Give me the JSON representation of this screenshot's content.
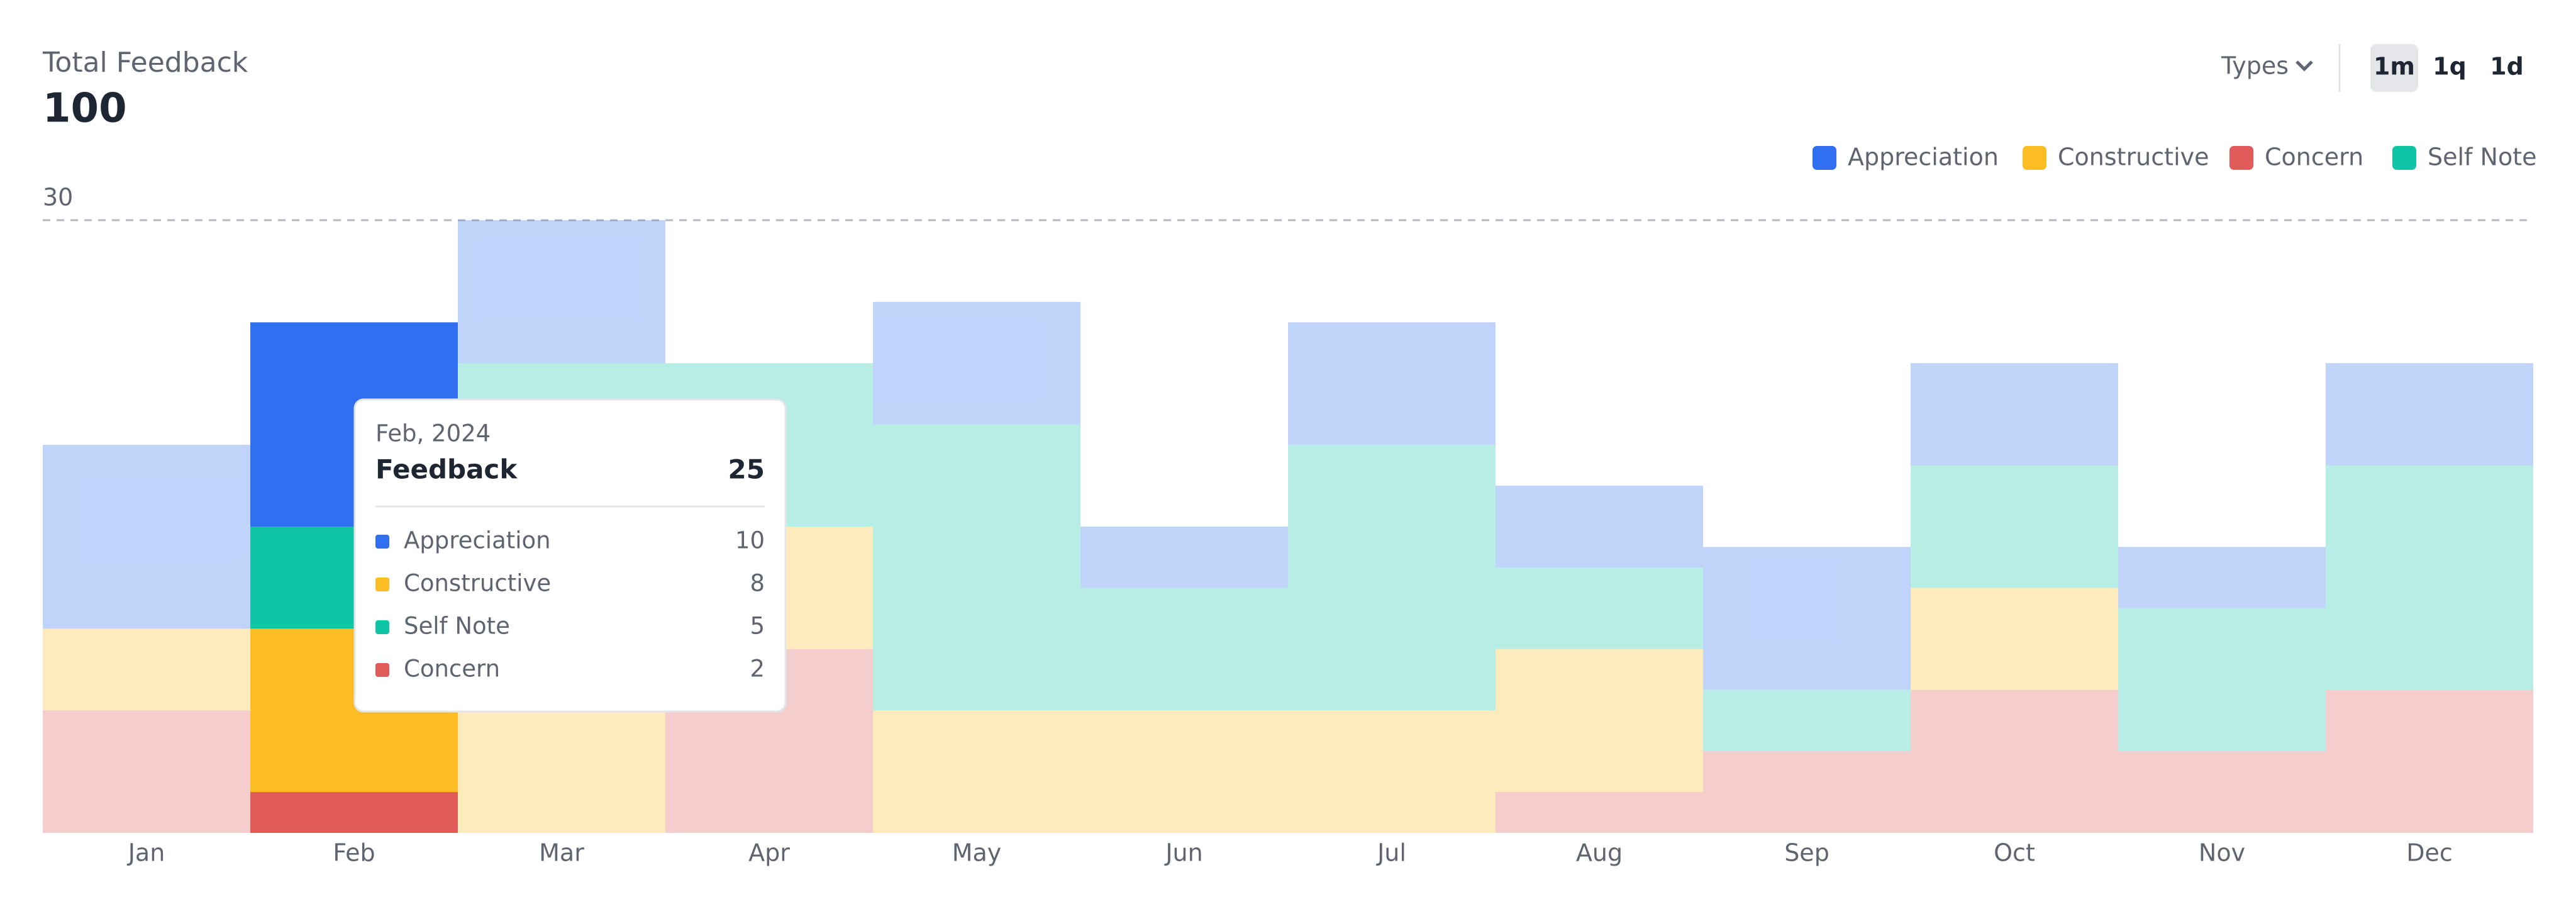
{
  "header": {
    "title": "Total Feedback",
    "total": 100,
    "filters": {
      "types": "Types",
      "ranges": [
        "1m",
        "1q",
        "1d"
      ],
      "active_range": 0
    }
  },
  "chart_data": {
    "type": "stacked-bar",
    "categories": [
      "Jan",
      "Feb",
      "Mar",
      "Apr",
      "May",
      "Jun",
      "Jul",
      "Aug",
      "Sep",
      "Oct",
      "Nov",
      "Dec"
    ],
    "series": [
      {
        "name": "Appreciation",
        "color": "#2f6ff0",
        "values": [
          9,
          10,
          7,
          0,
          6,
          3,
          6,
          4,
          7,
          5,
          3,
          5
        ]
      },
      {
        "name": "Constructive",
        "color": "#fbbd23",
        "values": [
          4,
          8,
          15,
          6,
          6,
          6,
          6,
          7,
          0,
          5,
          0,
          0
        ]
      },
      {
        "name": "Concern",
        "color": "#e25b5b",
        "values": [
          6,
          2,
          0,
          9,
          0,
          0,
          0,
          2,
          4,
          7,
          4,
          7
        ]
      },
      {
        "name": "Self Note",
        "color": "#10c5a5",
        "values": [
          0,
          5,
          8,
          8,
          14,
          6,
          13,
          4,
          3,
          6,
          7,
          11
        ]
      }
    ],
    "ylim": [
      0,
      30
    ],
    "yticks": [
      30
    ],
    "selected": "Feb",
    "tooltip": {
      "date": "Feb, 2024",
      "label": "Feedback",
      "total": 25
    }
  }
}
